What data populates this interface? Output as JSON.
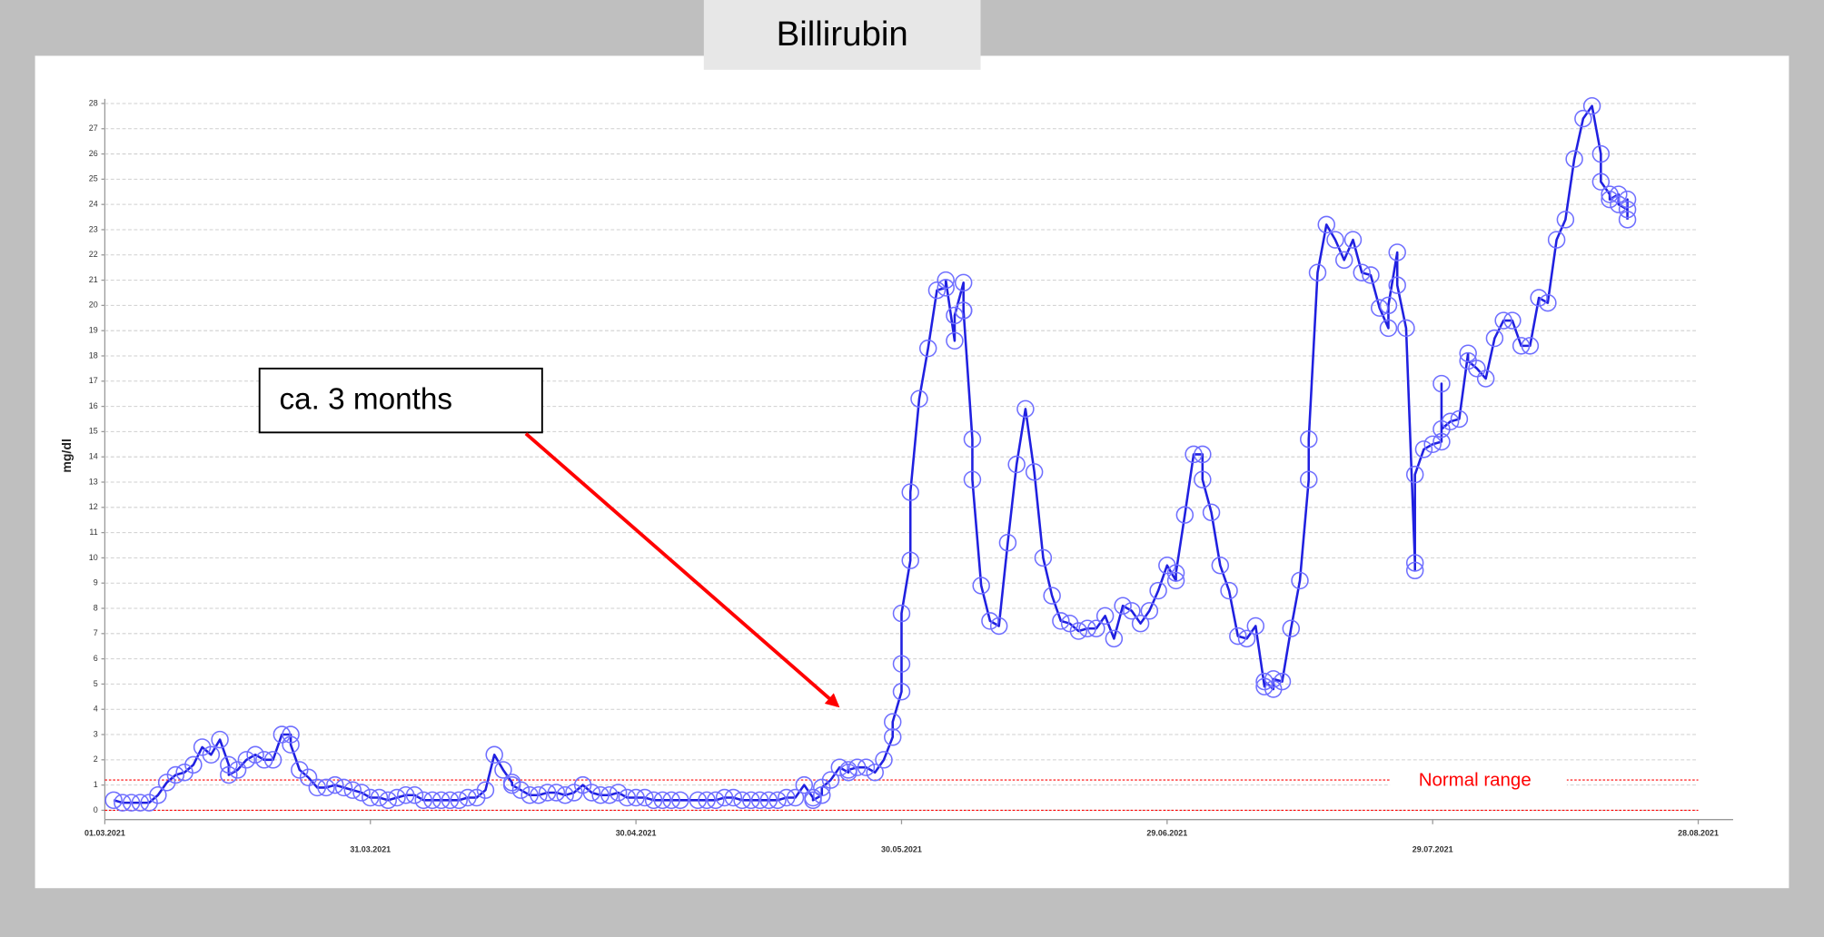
{
  "chart_data": {
    "type": "line",
    "title": "Billirubin",
    "ylabel": "mg/dl",
    "annotation": "ca. 3 months",
    "annotation_color": "#ff0000",
    "normal_range": {
      "label": "Normal range",
      "lines": [
        0,
        1.2
      ],
      "color": "#ff0000"
    },
    "grid": true,
    "xlim": [
      "2021-03-01",
      "2021-08-28"
    ],
    "xticks": [
      {
        "value": "2021-03-01",
        "label": "01.03.2021"
      },
      {
        "value": "2021-03-31",
        "label": "31.03.2021"
      },
      {
        "value": "2021-04-30",
        "label": "30.04.2021"
      },
      {
        "value": "2021-05-30",
        "label": "30.05.2021"
      },
      {
        "value": "2021-06-29",
        "label": "29.06.2021"
      },
      {
        "value": "2021-07-29",
        "label": "29.07.2021"
      },
      {
        "value": "2021-08-28",
        "label": "28.08.2021"
      }
    ],
    "ylim": [
      0,
      28
    ],
    "yticks": [
      0,
      1,
      2,
      3,
      4,
      5,
      6,
      7,
      8,
      9,
      10,
      11,
      12,
      13,
      14,
      15,
      16,
      17,
      18,
      19,
      20,
      21,
      22,
      23,
      24,
      25,
      26,
      27,
      28
    ],
    "x": [
      "2021-03-02",
      "2021-03-03",
      "2021-03-04",
      "2021-03-05",
      "2021-03-06",
      "2021-03-07",
      "2021-03-08",
      "2021-03-09",
      "2021-03-10",
      "2021-03-11",
      "2021-03-12",
      "2021-03-13",
      "2021-03-14",
      "2021-03-15",
      "2021-03-15",
      "2021-03-16",
      "2021-03-17",
      "2021-03-18",
      "2021-03-19",
      "2021-03-20",
      "2021-03-21",
      "2021-03-22",
      "2021-03-22",
      "2021-03-23",
      "2021-03-24",
      "2021-03-25",
      "2021-03-26",
      "2021-03-27",
      "2021-03-28",
      "2021-03-29",
      "2021-03-30",
      "2021-03-31",
      "2021-04-01",
      "2021-04-02",
      "2021-04-03",
      "2021-04-04",
      "2021-04-05",
      "2021-04-06",
      "2021-04-07",
      "2021-04-08",
      "2021-04-09",
      "2021-04-10",
      "2021-04-11",
      "2021-04-12",
      "2021-04-13",
      "2021-04-14",
      "2021-04-15",
      "2021-04-16",
      "2021-04-16",
      "2021-04-17",
      "2021-04-18",
      "2021-04-19",
      "2021-04-20",
      "2021-04-21",
      "2021-04-22",
      "2021-04-23",
      "2021-04-24",
      "2021-04-25",
      "2021-04-26",
      "2021-04-27",
      "2021-04-28",
      "2021-04-29",
      "2021-04-30",
      "2021-05-01",
      "2021-05-02",
      "2021-05-03",
      "2021-05-04",
      "2021-05-05",
      "2021-05-07",
      "2021-05-08",
      "2021-05-09",
      "2021-05-10",
      "2021-05-11",
      "2021-05-12",
      "2021-05-13",
      "2021-05-14",
      "2021-05-15",
      "2021-05-16",
      "2021-05-17",
      "2021-05-18",
      "2021-05-19",
      "2021-05-20",
      "2021-05-20",
      "2021-05-21",
      "2021-05-21",
      "2021-05-22",
      "2021-05-23",
      "2021-05-24",
      "2021-05-24",
      "2021-05-25",
      "2021-05-26",
      "2021-05-27",
      "2021-05-28",
      "2021-05-29",
      "2021-05-29",
      "2021-05-30",
      "2021-05-30",
      "2021-05-30",
      "2021-05-31",
      "2021-05-31",
      "2021-06-01",
      "2021-06-02",
      "2021-06-03",
      "2021-06-04",
      "2021-06-04",
      "2021-06-05",
      "2021-06-05",
      "2021-06-06",
      "2021-06-06",
      "2021-06-06",
      "2021-06-07",
      "2021-06-07",
      "2021-06-08",
      "2021-06-09",
      "2021-06-10",
      "2021-06-11",
      "2021-06-12",
      "2021-06-13",
      "2021-06-14",
      "2021-06-15",
      "2021-06-16",
      "2021-06-17",
      "2021-06-18",
      "2021-06-19",
      "2021-06-20",
      "2021-06-21",
      "2021-06-22",
      "2021-06-23",
      "2021-06-24",
      "2021-06-25",
      "2021-06-26",
      "2021-06-27",
      "2021-06-28",
      "2021-06-29",
      "2021-06-30",
      "2021-06-30",
      "2021-07-01",
      "2021-07-02",
      "2021-07-03",
      "2021-07-03",
      "2021-07-04",
      "2021-07-05",
      "2021-07-06",
      "2021-07-07",
      "2021-07-08",
      "2021-07-09",
      "2021-07-10",
      "2021-07-10",
      "2021-07-11",
      "2021-07-11",
      "2021-07-12",
      "2021-07-13",
      "2021-07-14",
      "2021-07-15",
      "2021-07-15",
      "2021-07-16",
      "2021-07-17",
      "2021-07-18",
      "2021-07-19",
      "2021-07-20",
      "2021-07-21",
      "2021-07-22",
      "2021-07-23",
      "2021-07-24",
      "2021-07-24",
      "2021-07-25",
      "2021-07-25",
      "2021-07-26",
      "2021-07-27",
      "2021-07-27",
      "2021-07-27",
      "2021-07-28",
      "2021-07-29",
      "2021-07-30",
      "2021-07-30",
      "2021-07-30",
      "2021-07-31",
      "2021-08-01",
      "2021-08-02",
      "2021-08-02",
      "2021-08-03",
      "2021-08-04",
      "2021-08-05",
      "2021-08-06",
      "2021-08-07",
      "2021-08-08",
      "2021-08-09",
      "2021-08-10",
      "2021-08-11",
      "2021-08-12",
      "2021-08-13",
      "2021-08-14",
      "2021-08-15",
      "2021-08-16",
      "2021-08-17",
      "2021-08-17",
      "2021-08-18",
      "2021-08-18",
      "2021-08-19",
      "2021-08-19",
      "2021-08-20",
      "2021-08-20",
      "2021-08-20"
    ],
    "series": [
      {
        "line_color": "#2020e0",
        "color": "#6f6fff",
        "values": [
          0.4,
          0.3,
          0.3,
          0.3,
          0.3,
          0.6,
          1.1,
          1.4,
          1.5,
          1.8,
          2.5,
          2.2,
          2.8,
          1.8,
          1.4,
          1.6,
          2.0,
          2.2,
          2.0,
          2.0,
          3.0,
          3.0,
          2.6,
          1.6,
          1.3,
          0.9,
          0.9,
          1.0,
          0.9,
          0.8,
          0.7,
          0.5,
          0.5,
          0.4,
          0.5,
          0.6,
          0.6,
          0.4,
          0.4,
          0.4,
          0.4,
          0.4,
          0.5,
          0.5,
          0.8,
          2.2,
          1.6,
          1.1,
          1.0,
          0.8,
          0.6,
          0.6,
          0.7,
          0.7,
          0.6,
          0.7,
          1.0,
          0.7,
          0.6,
          0.6,
          0.7,
          0.5,
          0.5,
          0.5,
          0.4,
          0.4,
          0.4,
          0.4,
          0.4,
          0.4,
          0.4,
          0.5,
          0.5,
          0.4,
          0.4,
          0.4,
          0.4,
          0.4,
          0.5,
          0.5,
          1.0,
          0.5,
          0.4,
          0.6,
          0.9,
          1.2,
          1.7,
          1.5,
          1.6,
          1.7,
          1.7,
          1.5,
          2.0,
          2.9,
          3.5,
          4.7,
          5.8,
          7.8,
          9.9,
          12.6,
          16.3,
          18.3,
          20.6,
          20.7,
          21.0,
          18.6,
          19.6,
          20.9,
          19.8,
          19.8,
          14.7,
          13.1,
          8.9,
          7.5,
          7.3,
          10.6,
          13.7,
          15.9,
          13.4,
          10.0,
          8.5,
          7.5,
          7.4,
          7.1,
          7.2,
          7.2,
          7.7,
          6.8,
          8.1,
          7.9,
          7.4,
          7.9,
          8.7,
          9.7,
          9.1,
          9.4,
          11.7,
          14.1,
          14.1,
          13.1,
          11.8,
          9.7,
          8.7,
          6.9,
          6.8,
          7.3,
          4.9,
          5.1,
          4.8,
          5.2,
          5.1,
          7.2,
          9.1,
          13.1,
          14.7,
          21.3,
          23.2,
          22.6,
          21.8,
          22.6,
          21.3,
          21.2,
          19.9,
          19.1,
          20.0,
          22.1,
          20.8,
          19.1,
          9.8,
          9.5,
          13.3,
          14.3,
          14.5,
          14.6,
          16.9,
          15.1,
          15.4,
          15.5,
          18.1,
          17.8,
          17.5,
          17.1,
          18.7,
          19.4,
          19.4,
          18.4,
          18.4,
          20.3,
          20.1,
          22.6,
          23.4,
          25.8,
          27.4,
          27.9,
          26.0,
          24.9,
          24.4,
          24.2,
          24.4,
          24.0,
          23.8,
          24.2,
          23.4
        ]
      }
    ]
  }
}
